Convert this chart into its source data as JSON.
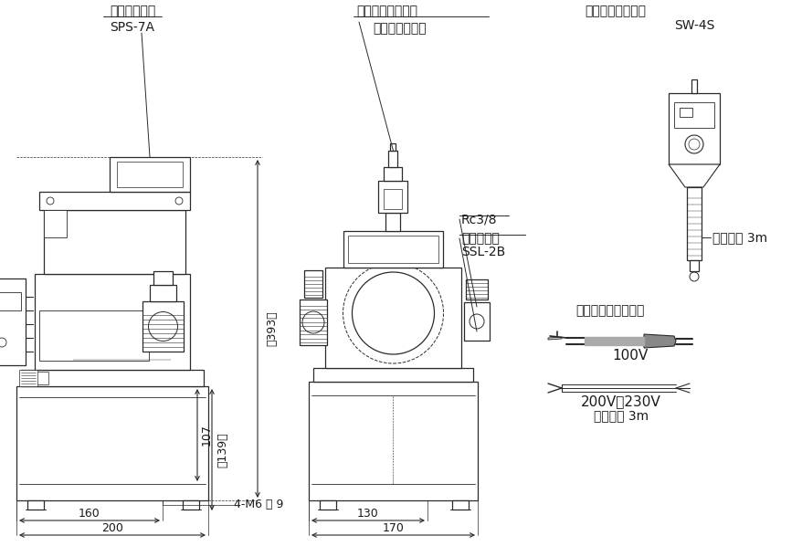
{
  "bg_color": "#ffffff",
  "lc": "#2a2a2a",
  "tc": "#1a1a1a",
  "labels": {
    "ps_title": "圧力スイッチ",
    "ps_model": "SPS-7A",
    "av_title": "空気弁及び給油口",
    "av_sub": "レベルゲージ付",
    "hs_title": "手許操作スイッチ",
    "hs_model": "SW-4S",
    "rc38": "Rc3/8",
    "dv_title": "方向制御弁",
    "dv_model": "SSL-2B",
    "cord1": "コード長 3m",
    "power_cord": "電源コード先端形状",
    "v100": "100V",
    "v200": "200V・230V",
    "cord2": "コード長 3m",
    "d393": "（393）",
    "d107": "107",
    "d139": "（139）",
    "d160": "160",
    "d4m6": "4-M6 深 9",
    "d200": "200",
    "d130": "130",
    "d170": "170"
  }
}
